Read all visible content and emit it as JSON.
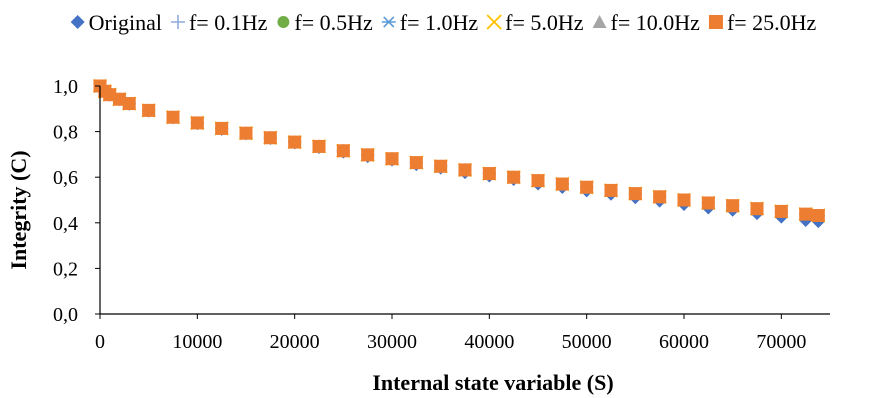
{
  "chart_data": {
    "type": "scatter",
    "xlabel": "Internal state variable (S)",
    "ylabel": "Integrity (C)",
    "xlim": [
      0,
      75000
    ],
    "ylim": [
      0,
      1.0
    ],
    "x_ticks": [
      0,
      10000,
      20000,
      30000,
      40000,
      50000,
      60000,
      70000
    ],
    "x_tick_labels": [
      "0",
      "10000",
      "20000",
      "30000",
      "40000",
      "50000",
      "60000",
      "70000"
    ],
    "y_ticks": [
      0,
      0.2,
      0.4,
      0.6,
      0.8,
      1.0
    ],
    "y_tick_labels": [
      "0,0",
      "0,2",
      "0,4",
      "0,6",
      "0,8",
      "1,0"
    ],
    "grid": false,
    "legend_position": "top",
    "x": [
      0,
      500,
      1000,
      2000,
      3000,
      5000,
      7500,
      10000,
      12500,
      15000,
      17500,
      20000,
      22500,
      25000,
      27500,
      30000,
      32500,
      35000,
      37500,
      40000,
      42500,
      45000,
      47500,
      50000,
      52500,
      55000,
      57500,
      60000,
      62500,
      65000,
      67500,
      70000,
      72500,
      73800
    ],
    "series": [
      {
        "name": "Original",
        "marker": "diamond",
        "color": "#4472C4",
        "values": [
          1.0,
          0.975,
          0.96,
          0.94,
          0.92,
          0.89,
          0.86,
          0.835,
          0.81,
          0.79,
          0.77,
          0.75,
          0.73,
          0.71,
          0.69,
          0.675,
          0.655,
          0.64,
          0.62,
          0.605,
          0.59,
          0.57,
          0.555,
          0.54,
          0.525,
          0.51,
          0.495,
          0.48,
          0.465,
          0.455,
          0.44,
          0.425,
          0.41,
          0.405
        ]
      },
      {
        "name": "f= 0.1Hz",
        "marker": "plus",
        "color": "#8FAADC",
        "values": [
          1.0,
          0.977,
          0.962,
          0.942,
          0.923,
          0.893,
          0.863,
          0.838,
          0.814,
          0.793,
          0.773,
          0.754,
          0.735,
          0.716,
          0.698,
          0.681,
          0.664,
          0.648,
          0.632,
          0.616,
          0.6,
          0.585,
          0.57,
          0.556,
          0.542,
          0.528,
          0.514,
          0.5,
          0.487,
          0.475,
          0.462,
          0.45,
          0.438,
          0.432
        ]
      },
      {
        "name": "f= 0.5Hz",
        "marker": "circle",
        "color": "#70AD47",
        "values": [
          1.0,
          0.977,
          0.962,
          0.942,
          0.923,
          0.893,
          0.863,
          0.838,
          0.814,
          0.793,
          0.773,
          0.754,
          0.735,
          0.716,
          0.698,
          0.681,
          0.664,
          0.648,
          0.632,
          0.616,
          0.6,
          0.585,
          0.57,
          0.556,
          0.542,
          0.528,
          0.514,
          0.5,
          0.487,
          0.475,
          0.462,
          0.45,
          0.438,
          0.432
        ]
      },
      {
        "name": "f= 1.0Hz",
        "marker": "asterisk",
        "color": "#5B9BD5",
        "values": [
          1.0,
          0.977,
          0.962,
          0.942,
          0.923,
          0.893,
          0.863,
          0.838,
          0.814,
          0.793,
          0.773,
          0.754,
          0.735,
          0.716,
          0.698,
          0.681,
          0.664,
          0.648,
          0.632,
          0.616,
          0.6,
          0.585,
          0.57,
          0.556,
          0.542,
          0.528,
          0.514,
          0.5,
          0.487,
          0.475,
          0.462,
          0.45,
          0.438,
          0.432
        ]
      },
      {
        "name": "f= 5.0Hz",
        "marker": "x",
        "color": "#FFC000",
        "values": [
          1.0,
          0.977,
          0.962,
          0.942,
          0.923,
          0.893,
          0.863,
          0.838,
          0.814,
          0.793,
          0.773,
          0.754,
          0.735,
          0.716,
          0.698,
          0.681,
          0.664,
          0.648,
          0.632,
          0.616,
          0.6,
          0.585,
          0.57,
          0.556,
          0.542,
          0.528,
          0.514,
          0.5,
          0.487,
          0.475,
          0.462,
          0.45,
          0.438,
          0.432
        ]
      },
      {
        "name": "f= 10.0Hz",
        "marker": "triangle",
        "color": "#A5A5A5",
        "values": [
          1.0,
          0.977,
          0.962,
          0.942,
          0.923,
          0.893,
          0.863,
          0.838,
          0.814,
          0.793,
          0.773,
          0.754,
          0.735,
          0.716,
          0.698,
          0.681,
          0.664,
          0.648,
          0.632,
          0.616,
          0.6,
          0.585,
          0.57,
          0.556,
          0.542,
          0.528,
          0.514,
          0.5,
          0.487,
          0.475,
          0.462,
          0.45,
          0.438,
          0.432
        ]
      },
      {
        "name": "f= 25.0Hz",
        "marker": "square",
        "color": "#ED7D31",
        "values": [
          1.0,
          0.977,
          0.962,
          0.942,
          0.923,
          0.893,
          0.863,
          0.838,
          0.814,
          0.793,
          0.773,
          0.754,
          0.735,
          0.716,
          0.698,
          0.681,
          0.664,
          0.648,
          0.632,
          0.616,
          0.6,
          0.585,
          0.57,
          0.556,
          0.542,
          0.528,
          0.514,
          0.5,
          0.487,
          0.475,
          0.462,
          0.45,
          0.438,
          0.432
        ]
      }
    ]
  }
}
